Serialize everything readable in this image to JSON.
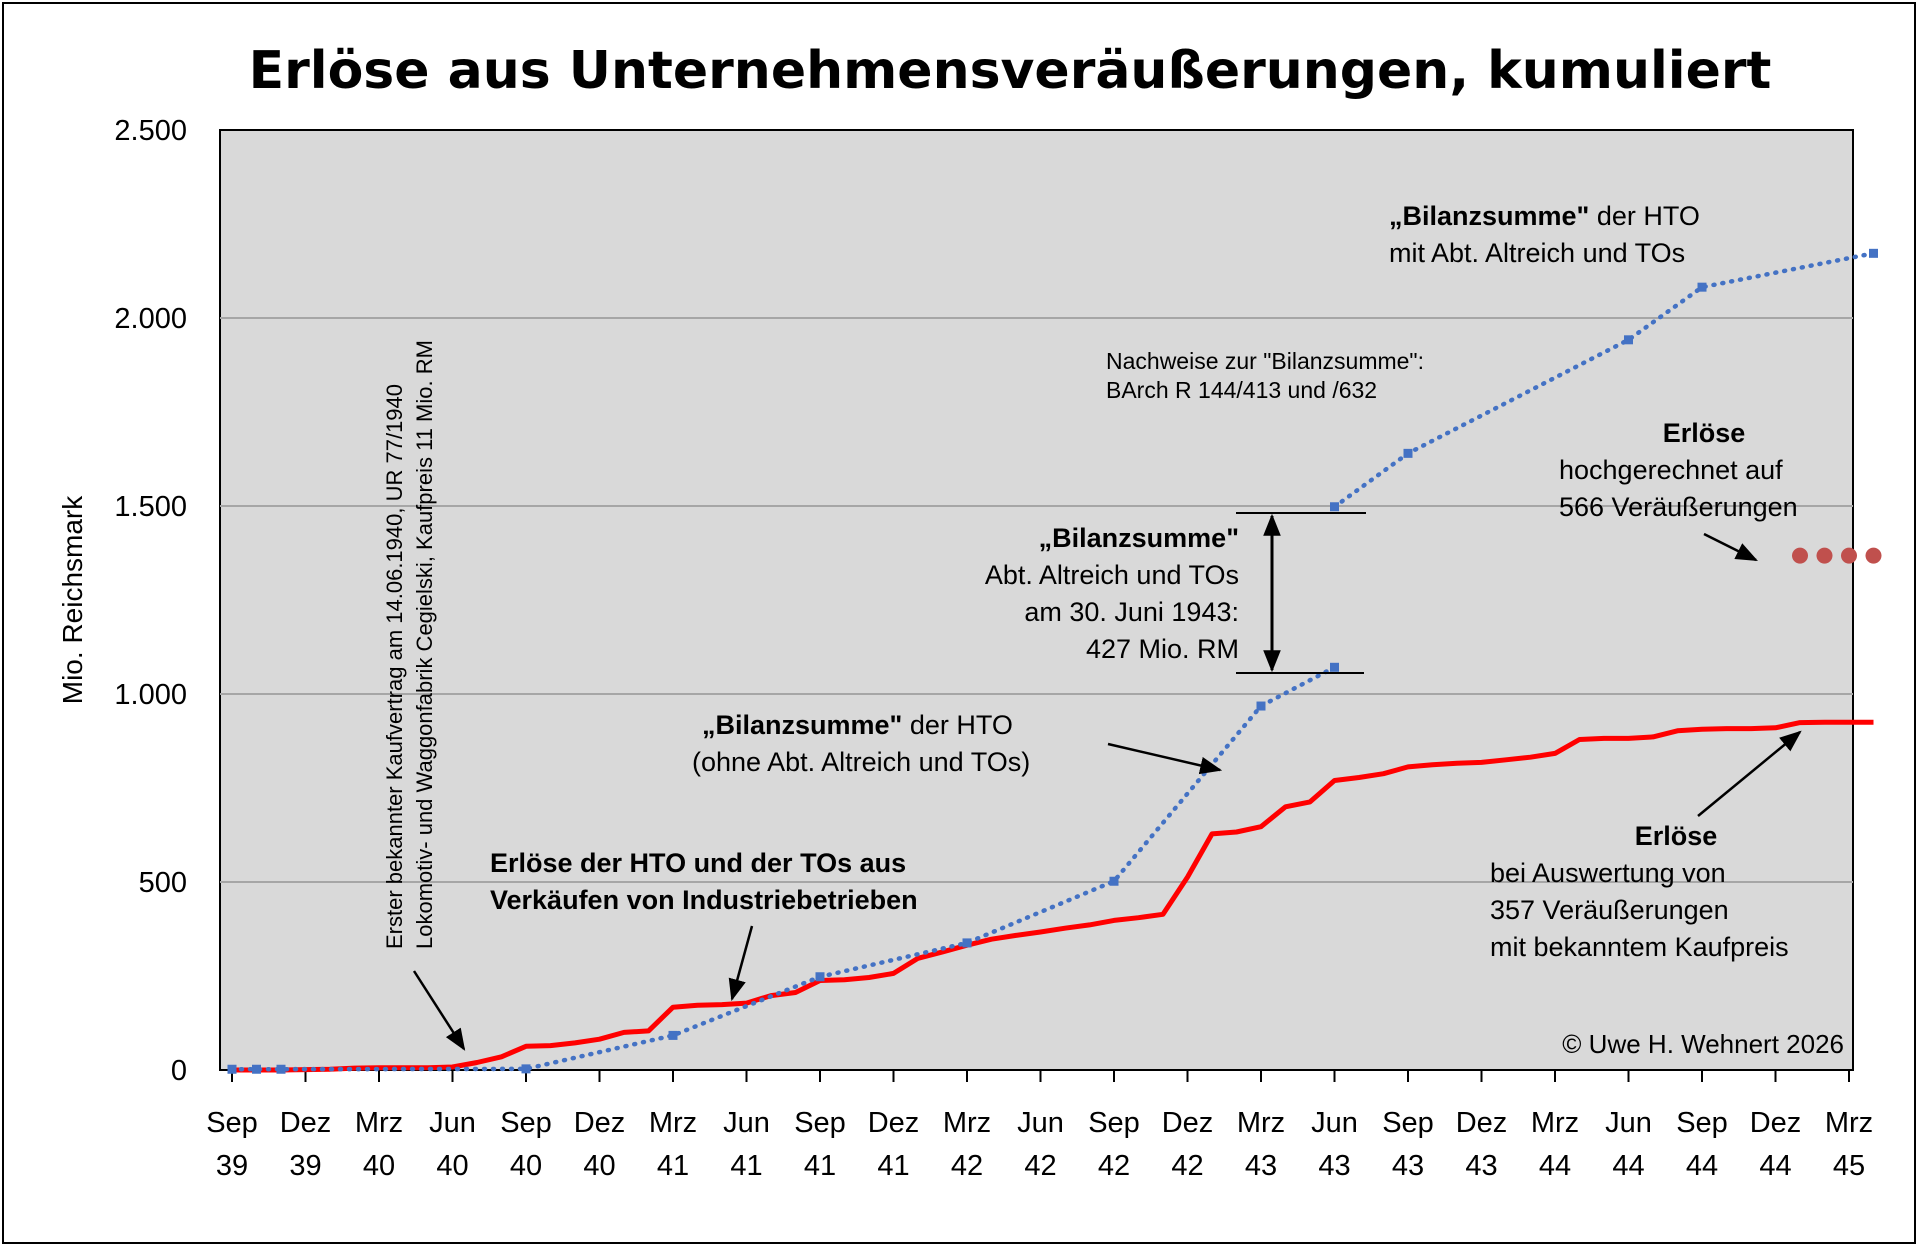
{
  "chart_data": {
    "type": "line",
    "title": "Erlöse aus Unternehmensveräußerungen, kumuliert",
    "ylabel": "Mio. Reichsmark",
    "ylim": [
      0,
      2500
    ],
    "yticks": [
      0,
      500,
      1000,
      1500,
      2000,
      2500
    ],
    "ytick_labels": [
      "0",
      "500",
      "1.000",
      "1.500",
      "2.000",
      "2.500"
    ],
    "grid": true,
    "x_start": "1939-09",
    "x_end": "1945-03",
    "xticks": [
      {
        "month": "1939-09",
        "line1": "Sep",
        "line2": "39"
      },
      {
        "month": "1939-12",
        "line1": "Dez",
        "line2": "39"
      },
      {
        "month": "1940-03",
        "line1": "Mrz",
        "line2": "40"
      },
      {
        "month": "1940-06",
        "line1": "Jun",
        "line2": "40"
      },
      {
        "month": "1940-09",
        "line1": "Sep",
        "line2": "40"
      },
      {
        "month": "1940-12",
        "line1": "Dez",
        "line2": "40"
      },
      {
        "month": "1941-03",
        "line1": "Mrz",
        "line2": "41"
      },
      {
        "month": "1941-06",
        "line1": "Jun",
        "line2": "41"
      },
      {
        "month": "1941-09",
        "line1": "Sep",
        "line2": "41"
      },
      {
        "month": "1941-12",
        "line1": "Dez",
        "line2": "41"
      },
      {
        "month": "1942-03",
        "line1": "Mrz",
        "line2": "42"
      },
      {
        "month": "1942-06",
        "line1": "Jun",
        "line2": "42"
      },
      {
        "month": "1942-09",
        "line1": "Sep",
        "line2": "42"
      },
      {
        "month": "1942-12",
        "line1": "Dez",
        "line2": "42"
      },
      {
        "month": "1943-03",
        "line1": "Mrz",
        "line2": "43"
      },
      {
        "month": "1943-06",
        "line1": "Jun",
        "line2": "43"
      },
      {
        "month": "1943-09",
        "line1": "Sep",
        "line2": "43"
      },
      {
        "month": "1943-12",
        "line1": "Dez",
        "line2": "43"
      },
      {
        "month": "1944-03",
        "line1": "Mrz",
        "line2": "44"
      },
      {
        "month": "1944-06",
        "line1": "Jun",
        "line2": "44"
      },
      {
        "month": "1944-09",
        "line1": "Sep",
        "line2": "44"
      },
      {
        "month": "1944-12",
        "line1": "Dez",
        "line2": "44"
      },
      {
        "month": "1945-03",
        "line1": "Mrz",
        "line2": "45"
      }
    ],
    "series": [
      {
        "key": "erloese",
        "style": "solid",
        "color": "#ff0000",
        "points": [
          [
            "1939-09",
            0
          ],
          [
            "1939-10",
            0
          ],
          [
            "1939-11",
            0
          ],
          [
            "1939-12",
            1
          ],
          [
            "1940-01",
            2
          ],
          [
            "1940-02",
            5
          ],
          [
            "1940-03",
            6
          ],
          [
            "1940-04",
            6
          ],
          [
            "1940-05",
            6
          ],
          [
            "1940-06",
            8
          ],
          [
            "1940-07",
            20
          ],
          [
            "1940-08",
            35
          ],
          [
            "1940-09",
            63
          ],
          [
            "1940-10",
            65
          ],
          [
            "1940-11",
            72
          ],
          [
            "1940-12",
            82
          ],
          [
            "1941-01",
            100
          ],
          [
            "1941-02",
            104
          ],
          [
            "1941-03",
            167
          ],
          [
            "1941-04",
            172
          ],
          [
            "1941-05",
            174
          ],
          [
            "1941-06",
            178
          ],
          [
            "1941-07",
            198
          ],
          [
            "1941-08",
            206
          ],
          [
            "1941-09",
            238
          ],
          [
            "1941-10",
            240
          ],
          [
            "1941-11",
            246
          ],
          [
            "1941-12",
            257
          ],
          [
            "1942-01",
            297
          ],
          [
            "1942-02",
            314
          ],
          [
            "1942-03",
            332
          ],
          [
            "1942-04",
            348
          ],
          [
            "1942-05",
            358
          ],
          [
            "1942-06",
            367
          ],
          [
            "1942-07",
            377
          ],
          [
            "1942-08",
            386
          ],
          [
            "1942-09",
            398
          ],
          [
            "1942-10",
            405
          ],
          [
            "1942-11",
            414
          ],
          [
            "1942-12",
            513
          ],
          [
            "1943-01",
            628
          ],
          [
            "1943-02",
            633
          ],
          [
            "1943-03",
            647
          ],
          [
            "1943-04",
            700
          ],
          [
            "1943-05",
            713
          ],
          [
            "1943-06",
            770
          ],
          [
            "1943-07",
            778
          ],
          [
            "1943-08",
            788
          ],
          [
            "1943-09",
            806
          ],
          [
            "1943-10",
            812
          ],
          [
            "1943-11",
            816
          ],
          [
            "1943-12",
            818
          ],
          [
            "1944-01",
            825
          ],
          [
            "1944-02",
            832
          ],
          [
            "1944-03",
            842
          ],
          [
            "1944-04",
            879
          ],
          [
            "1944-05",
            882
          ],
          [
            "1944-06",
            882
          ],
          [
            "1944-07",
            886
          ],
          [
            "1944-08",
            902
          ],
          [
            "1944-09",
            906
          ],
          [
            "1944-10",
            908
          ],
          [
            "1944-11",
            908
          ],
          [
            "1944-12",
            910
          ],
          [
            "1945-01",
            924
          ],
          [
            "1945-02",
            925
          ],
          [
            "1945-03",
            925
          ],
          [
            "1945-04",
            925
          ]
        ]
      },
      {
        "key": "bilanzsumme_hto",
        "style": "dotted",
        "color": "#4472c4",
        "points": [
          [
            "1939-09",
            2
          ],
          [
            "1939-10",
            2
          ],
          [
            "1939-11",
            2
          ],
          [
            "1940-09",
            3
          ],
          [
            "1941-03",
            92
          ],
          [
            "1941-09",
            248
          ],
          [
            "1942-03",
            338
          ],
          [
            "1942-09",
            502
          ],
          [
            "1943-03",
            968
          ],
          [
            "1943-06",
            1071
          ]
        ]
      },
      {
        "key": "bilanzsumme_hto_altreich",
        "style": "dotted",
        "color": "#4472c4",
        "points": [
          [
            "1943-06",
            1498
          ],
          [
            "1943-09",
            1640
          ],
          [
            "1944-06",
            1942
          ],
          [
            "1944-09",
            2082
          ],
          [
            "1945-04",
            2172
          ]
        ]
      },
      {
        "key": "erloese_hochgerechnet",
        "style": "dots",
        "color": "#c0504d",
        "points": [
          [
            "1945-01",
            1368
          ],
          [
            "1945-02",
            1368
          ],
          [
            "1945-03",
            1368
          ],
          [
            "1945-04",
            1368
          ]
        ]
      }
    ],
    "annotations": {
      "vertical_note_line1": "Erster bekannter Kaufvertrag am 14.06.1940, UR 77/1940",
      "vertical_note_line2": "Lokomotiv- und Waggonfabrik Cegielski, Kaufpreis 11 Mio. RM",
      "erloese_label_line1": "Erlöse der HTO und der TOs aus",
      "erloese_label_line2": "Verkäufen von Industriebetrieben",
      "hto_label_bold": "„Bilanzsumme\"",
      "hto_label_rest": " der HTO",
      "hto_label_line2": "(ohne Abt. Altreich und TOs)",
      "altreich_bold": "„Bilanzsumme\"",
      "altreich_line2": "Abt. Altreich und TOs",
      "altreich_line3": "am 30. Juni 1943:",
      "altreich_line4": "427 Mio. RM",
      "nachweise_line1": "Nachweise zur \"Bilanzsumme\":",
      "nachweise_line2": "BArch R 144/413 und /632",
      "top_label_bold": "„Bilanzsumme\"",
      "top_label_rest": " der HTO",
      "top_label_line2": "mit Abt. Altreich und TOs",
      "hoch_bold": "Erlöse",
      "hoch_line2": "hochgerechnet auf",
      "hoch_line3": "566 Veräußerungen",
      "ausw_bold": "Erlöse",
      "ausw_line2": "bei Auswertung von",
      "ausw_line3": "357 Veräußerungen",
      "ausw_line4": "mit bekanntem Kaufpreis",
      "copyright": "© Uwe H. Wehnert 2026"
    }
  }
}
